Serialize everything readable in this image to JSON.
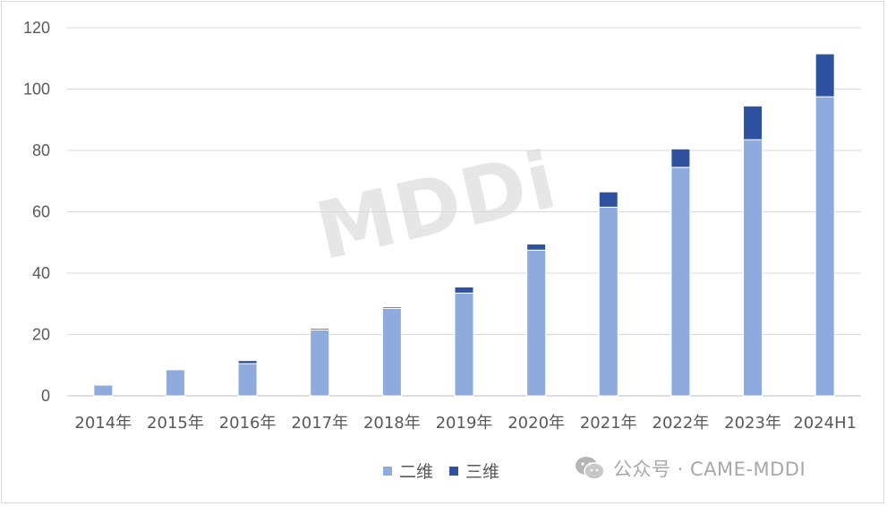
{
  "chart_data": {
    "type": "bar",
    "stacked": true,
    "categories": [
      "2014年",
      "2015年",
      "2016年",
      "2017年",
      "2018年",
      "2019年",
      "2020年",
      "2021年",
      "2022年",
      "2023年",
      "2024H1"
    ],
    "series": [
      {
        "name": "二维",
        "color": "#8faadc",
        "values": [
          3.5,
          8.5,
          10.5,
          21.5,
          28.5,
          33.5,
          47.5,
          61.5,
          74.5,
          83.5,
          97.5
        ]
      },
      {
        "name": "三维",
        "color": "#2f52a0",
        "values": [
          0,
          0,
          1.0,
          0.5,
          0.5,
          2.0,
          2.0,
          5.0,
          6.0,
          11.0,
          14.0
        ]
      }
    ],
    "ylim": [
      0,
      120
    ],
    "yticks": [
      0,
      20,
      40,
      60,
      80,
      100,
      120
    ],
    "grid": true,
    "legend_position": "bottom"
  },
  "watermark": {
    "logo_text": "MDDi",
    "source_text": "公众号 · CAME-MDDI",
    "icon": "wechat-icon"
  }
}
